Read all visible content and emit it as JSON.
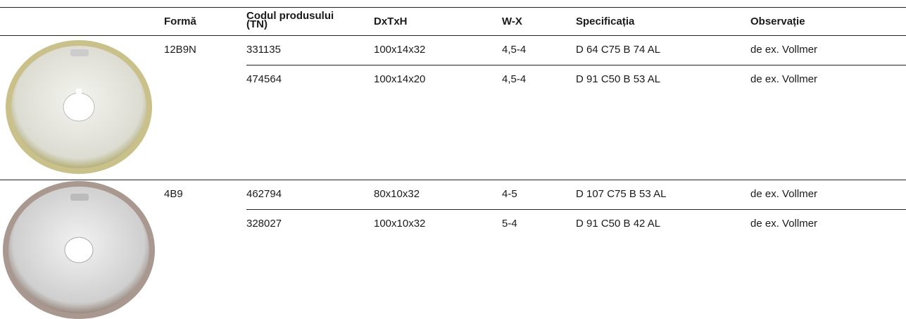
{
  "table": {
    "header": [
      "Formă",
      "Codul produsului (TN)",
      "DxTxH",
      "W-X",
      "Specificația",
      "Observație"
    ],
    "groups": [
      {
        "form": "12B9N",
        "rows": [
          [
            "331135",
            "100x14x32",
            "4,5-4",
            "D 64 C75 B 74 AL",
            "de ex. Vollmer"
          ],
          [
            "474564",
            "100x14x20",
            "4,5-4",
            "D 91 C50 B 53 AL",
            "de ex. Vollmer"
          ]
        ]
      },
      {
        "form": "4B9",
        "rows": [
          [
            "462794",
            "80x10x32",
            "4-5",
            "D 107 C75 B 53 AL",
            "de ex. Vollmer"
          ],
          [
            "328027",
            "100x10x32",
            "5-4",
            "D 91 C50 B 42 AL",
            "de ex. Vollmer"
          ]
        ]
      }
    ]
  }
}
